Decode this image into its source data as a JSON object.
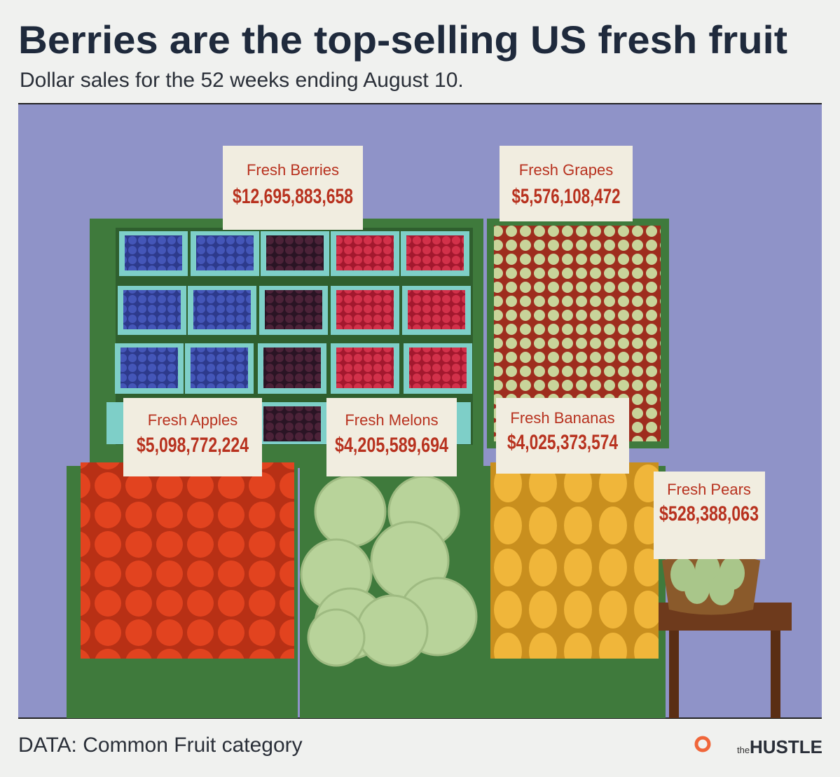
{
  "header": {
    "title": "Berries are the top-selling US fresh fruit",
    "subtitle": "Dollar sales for the 52 weeks ending August 10."
  },
  "items": [
    {
      "label": "Fresh Berries",
      "value": "$12,695,883,658"
    },
    {
      "label": "Fresh Grapes",
      "value": "$5,576,108,472"
    },
    {
      "label": "Fresh Apples",
      "value": "$5,098,772,224"
    },
    {
      "label": "Fresh Melons",
      "value": "$4,205,589,694"
    },
    {
      "label": "Fresh Bananas",
      "value": "$4,025,373,574"
    },
    {
      "label": "Fresh Pears",
      "value": "$528,388,063"
    }
  ],
  "footer": {
    "source": "DATA: Common Fruit category",
    "logo_prefix": "the",
    "logo": "HUSTLE"
  }
}
